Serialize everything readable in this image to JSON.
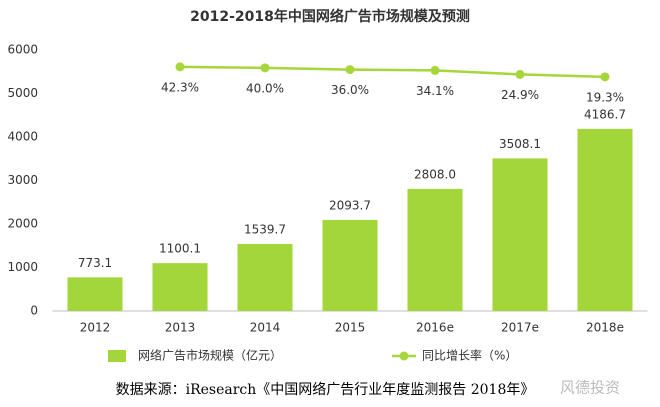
{
  "chart_data": {
    "type": "bar",
    "title": "2012-2018年中国网络广告市场规模及预测",
    "categories": [
      "2012",
      "2013",
      "2014",
      "2015",
      "2016e",
      "2017e",
      "2018e"
    ],
    "ylim": [
      0,
      6000
    ],
    "yticks": [
      0,
      1000,
      2000,
      3000,
      4000,
      5000,
      6000
    ],
    "y2lim": [
      -519,
      81
    ],
    "series": [
      {
        "name": "网络广告市场规模（亿元）",
        "color": "#a2d63a",
        "type": "bar",
        "values": [
          773.1,
          1100.1,
          1539.7,
          2093.7,
          2808.0,
          3508.1,
          4186.7
        ],
        "value_labels": [
          "773.1",
          "1100.1",
          "1539.7",
          "2093.7",
          "2808.0",
          "3508.1",
          "4186.7"
        ]
      },
      {
        "name": "同比增长率（%）",
        "color": "#a6d63a",
        "type": "line",
        "axis": "y2",
        "values": [
          null,
          42.3,
          40.0,
          36.0,
          34.1,
          24.9,
          19.3
        ],
        "value_labels": [
          null,
          "42.3%",
          "40.0%",
          "36.0%",
          "34.1%",
          "24.9%",
          "19.3%"
        ]
      }
    ],
    "legend": "bottom",
    "source": "数据来源：iResearch《中国网络广告行业年度监测报告 2018年》",
    "watermark": "风德投资"
  }
}
